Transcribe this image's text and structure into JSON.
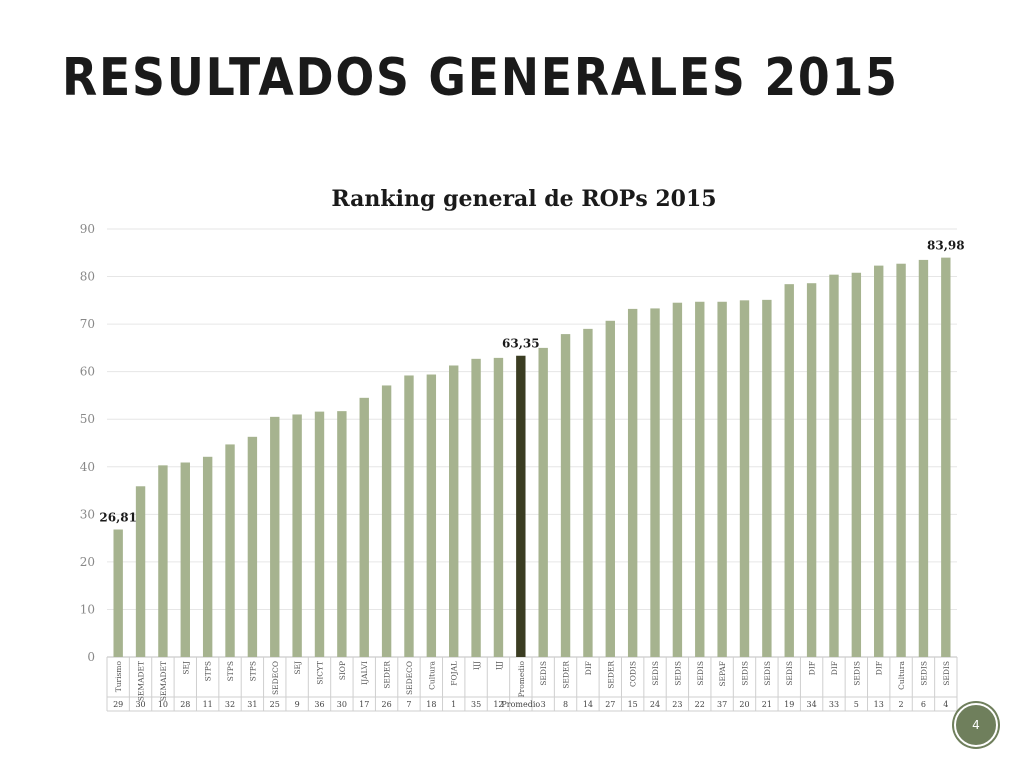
{
  "slide": {
    "title": "RESULTADOS GENERALES 2015",
    "page_number": "4"
  },
  "colors": {
    "bar": "#a6b38f",
    "highlight": "#3b3d22",
    "grid": "#e6e6e6",
    "badge": "#6f7f5c"
  },
  "chart_data": {
    "type": "bar",
    "title": "Ranking general de ROPs 2015",
    "xlabel": "",
    "ylabel": "",
    "ylim": [
      0,
      90
    ],
    "yticks": [
      0,
      10,
      20,
      30,
      40,
      50,
      60,
      70,
      80,
      90
    ],
    "grid": true,
    "legend": "none",
    "categories": [
      "Turismo",
      "SEMADET",
      "SEMADET",
      "SEJ",
      "STPS",
      "STPS",
      "STPS",
      "SEDECO",
      "SEJ",
      "SICYT",
      "SIOP",
      "IJALVI",
      "SEDER",
      "SEDECO",
      "Cultura",
      "FOJAL",
      "IJJ",
      "IJJ",
      "Promedio",
      "SEDIS",
      "SEDER",
      "DIF",
      "SEDER",
      "CODIS",
      "SEDIS",
      "SEDIS",
      "SEDIS",
      "SEPAF",
      "SEDIS",
      "SEDIS",
      "SEDIS",
      "DIF",
      "DIF",
      "SEDIS",
      "DIF",
      "Cultura",
      "SEDIS",
      "SEDIS"
    ],
    "ranks": [
      "29",
      "30",
      "10",
      "28",
      "11",
      "32",
      "31",
      "25",
      "9",
      "36",
      "30",
      "17",
      "26",
      "7",
      "18",
      "1",
      "35",
      "12",
      "Promedio",
      "3",
      "8",
      "14",
      "27",
      "15",
      "24",
      "23",
      "22",
      "37",
      "20",
      "21",
      "19",
      "34",
      "33",
      "5",
      "13",
      "2",
      "6",
      "4"
    ],
    "values": [
      26.81,
      35.9,
      40.3,
      40.9,
      42.1,
      44.7,
      46.3,
      50.5,
      51.0,
      51.6,
      51.7,
      54.5,
      57.1,
      59.2,
      59.4,
      61.3,
      62.7,
      62.9,
      63.35,
      65.0,
      67.9,
      69.0,
      70.7,
      73.2,
      73.3,
      74.5,
      74.7,
      74.7,
      75.0,
      75.1,
      78.4,
      78.6,
      80.4,
      80.8,
      82.3,
      82.7,
      83.5,
      83.98
    ],
    "highlight_index": 18,
    "data_labels": [
      {
        "index": 0,
        "text": "26,81"
      },
      {
        "index": 18,
        "text": "63,35"
      },
      {
        "index": 37,
        "text": "83,98"
      }
    ]
  }
}
